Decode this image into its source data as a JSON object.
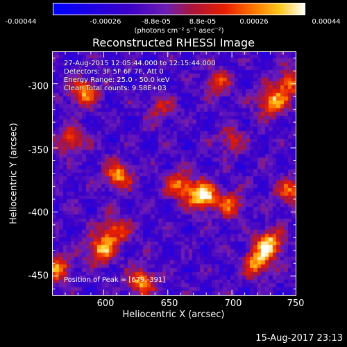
{
  "colorbar": {
    "ticks": [
      "-0.00044",
      "-0.00026",
      "-8.8e-05",
      "8.8e-05",
      "0.00026",
      "0.00044"
    ],
    "unit": "(photons cm⁻² s⁻¹ asec⁻²)"
  },
  "title": "Reconstructed RHESSI Image",
  "info": {
    "line1": "27-Aug-2015 12:05:44.000 to 12:15:44.000",
    "line2": "Detectors: 3F 5F 6F 7F, Att 0",
    "line3": "Energy Range: 25.0 - 50.0 keV",
    "line4": "Clean    Total counts: 9.58E+03"
  },
  "peak": "Position of Peak = [679,-391]",
  "chart_data": {
    "type": "heatmap",
    "title": "Reconstructed RHESSI Image",
    "xlabel": "Heliocentric X (arcsec)",
    "ylabel": "Heliocentric Y (arcsec)",
    "xlim": [
      560,
      750
    ],
    "ylim": [
      -465,
      -275
    ],
    "xticks": [
      "600",
      "650",
      "700",
      "750"
    ],
    "yticks": [
      "-300",
      "-350",
      "-400",
      "-450"
    ],
    "colorbar_range": [
      -0.00044,
      0.00044
    ],
    "peak_position": [
      679,
      -391
    ],
    "bright_sources": [
      {
        "x": 678,
        "y": -388,
        "intensity": 1.0
      },
      {
        "x": 660,
        "y": -380,
        "intensity": 0.65
      },
      {
        "x": 612,
        "y": -372,
        "intensity": 0.7
      },
      {
        "x": 585,
        "y": -308,
        "intensity": 0.7
      },
      {
        "x": 732,
        "y": -315,
        "intensity": 0.75
      },
      {
        "x": 745,
        "y": -300,
        "intensity": 0.6
      },
      {
        "x": 575,
        "y": -345,
        "intensity": 0.55
      },
      {
        "x": 730,
        "y": -425,
        "intensity": 0.8
      },
      {
        "x": 720,
        "y": -440,
        "intensity": 0.7
      },
      {
        "x": 598,
        "y": -430,
        "intensity": 0.75
      },
      {
        "x": 630,
        "y": -455,
        "intensity": 0.7
      },
      {
        "x": 700,
        "y": -395,
        "intensity": 0.55
      },
      {
        "x": 610,
        "y": -415,
        "intensity": 0.6
      },
      {
        "x": 690,
        "y": -300,
        "intensity": 0.45
      },
      {
        "x": 745,
        "y": -385,
        "intensity": 0.55
      },
      {
        "x": 565,
        "y": -445,
        "intensity": 0.65
      },
      {
        "x": 700,
        "y": -345,
        "intensity": 0.4
      },
      {
        "x": 645,
        "y": -320,
        "intensity": 0.35
      }
    ]
  },
  "timestamp": "15-Aug-2017 23:13"
}
